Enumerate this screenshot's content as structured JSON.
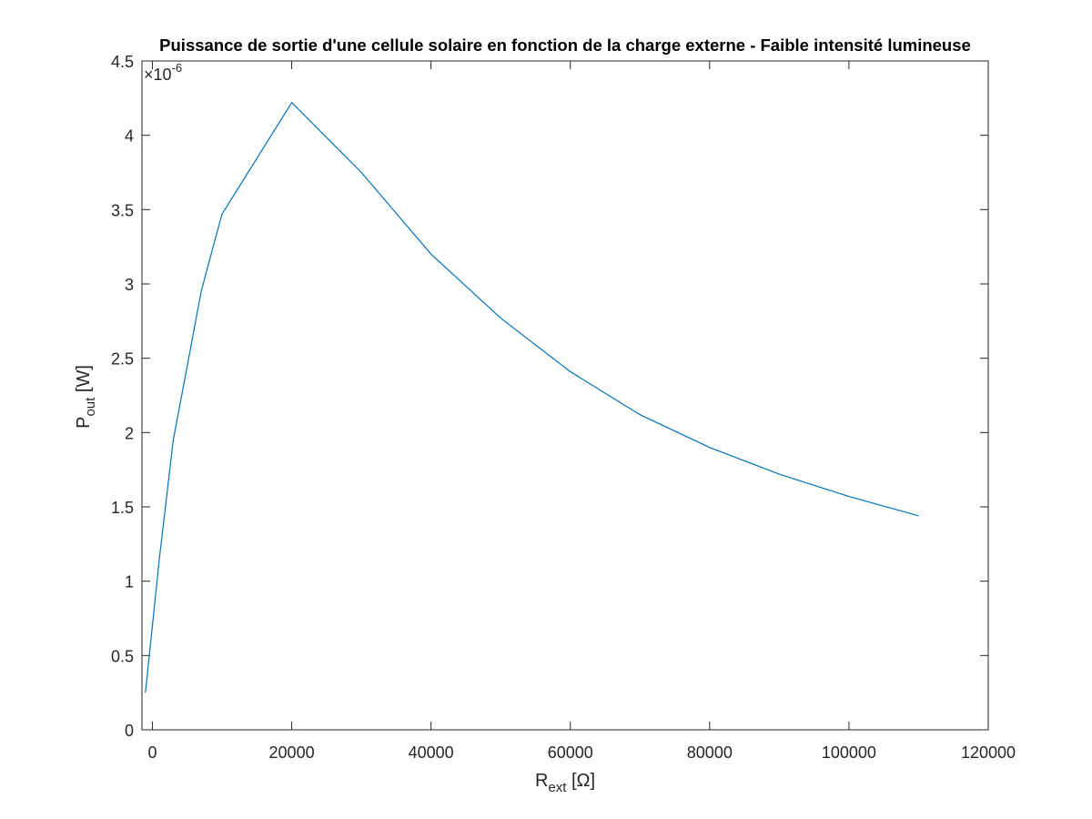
{
  "chart_data": {
    "type": "line",
    "title": "Puissance de sortie d'une cellule solaire en fonction de la charge externe - Faible intensité lumineuse",
    "xlabel": {
      "main": "R",
      "sub": "ext",
      "unit": " [Ω]"
    },
    "ylabel": {
      "main": "P",
      "sub": "out",
      "unit": " [W]"
    },
    "y_exponent": {
      "base": "×10",
      "power": "-6"
    },
    "xlim": [
      -1500,
      120000
    ],
    "ylim": [
      0,
      4.5
    ],
    "xticks": [
      0,
      20000,
      40000,
      60000,
      80000,
      100000,
      120000
    ],
    "xtick_labels": [
      "0",
      "20000",
      "40000",
      "60000",
      "80000",
      "100000",
      "120000"
    ],
    "yticks": [
      0,
      0.5,
      1,
      1.5,
      2,
      2.5,
      3,
      3.5,
      4,
      4.5
    ],
    "ytick_labels": [
      "0",
      "0.5",
      "1",
      "1.5",
      "2",
      "2.5",
      "3",
      "3.5",
      "4",
      "4.5"
    ],
    "grid": false,
    "line_color": "#0072BD",
    "series": [
      {
        "x": [
          -1000,
          1000,
          3000,
          5000,
          7000,
          9000,
          10000,
          20000,
          30000,
          40000,
          50000,
          60000,
          70000,
          80000,
          90000,
          100000,
          110000
        ],
        "values": [
          0.25,
          1.15,
          1.95,
          2.45,
          2.95,
          3.3,
          3.47,
          4.22,
          3.75,
          3.2,
          2.77,
          2.41,
          2.12,
          1.9,
          1.72,
          1.57,
          1.44
        ]
      }
    ]
  }
}
